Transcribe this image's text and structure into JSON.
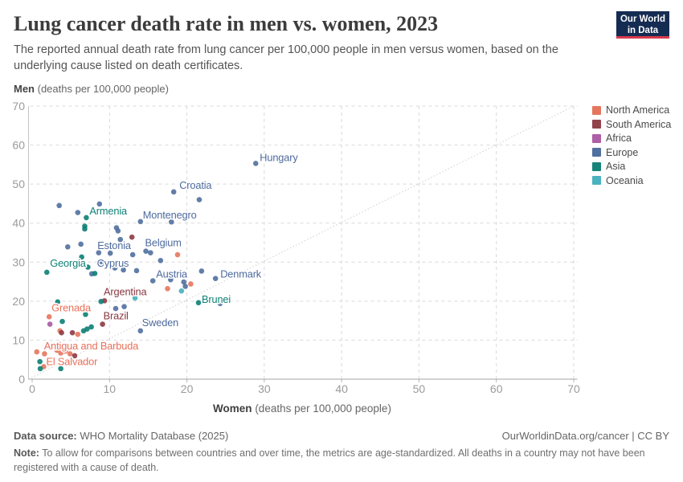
{
  "header": {
    "title": "Lung cancer death rate in men vs. women, 2023",
    "subtitle": "The reported annual death rate from lung cancer per 100,000 people in men versus women, based on the underlying cause listed on death certificates.",
    "logo_line1": "Our World",
    "logo_line2": "in Data"
  },
  "y_axis_title": {
    "bold": "Men",
    "rest": " (deaths per 100,000 people)"
  },
  "x_axis_title": {
    "bold": "Women",
    "rest": " (deaths per 100,000 people)"
  },
  "legend": {
    "items": [
      {
        "label": "North America",
        "color": "#e5765e"
      },
      {
        "label": "South America",
        "color": "#91434c"
      },
      {
        "label": "Africa",
        "color": "#ae5fa7"
      },
      {
        "label": "Europe",
        "color": "#50709f"
      },
      {
        "label": "Asia",
        "color": "#17847a"
      },
      {
        "label": "Oceania",
        "color": "#4bb2bf"
      }
    ]
  },
  "chart_data": {
    "type": "scatter",
    "title": "Lung cancer death rate in men vs. women, 2023",
    "xlabel": "Women (deaths per 100,000 people)",
    "ylabel": "Men (deaths per 100,000 people)",
    "xlim": [
      0,
      70
    ],
    "ylim": [
      0,
      70
    ],
    "x_ticks": [
      0,
      10,
      20,
      30,
      40,
      50,
      60,
      70
    ],
    "y_ticks": [
      0,
      10,
      20,
      30,
      40,
      50,
      60,
      70
    ],
    "grid": true,
    "diagonal_reference_line": true,
    "legend_position": "right",
    "series": [
      {
        "name": "North America",
        "color": "#e5765e",
        "text_color": "#e86f59",
        "points": [
          [
            2.2,
            16,
            "Grenada",
            3,
            -7
          ],
          [
            0.6,
            7,
            "Antigua and Barbuda",
            9,
            -3
          ],
          [
            1.5,
            3.2,
            "El Salvador",
            3,
            -2
          ],
          [
            18.8,
            31.9
          ],
          [
            20.5,
            24.4
          ],
          [
            17.5,
            23.2
          ],
          [
            3.6,
            12.4
          ],
          [
            5.9,
            11.5
          ],
          [
            1.6,
            6.5
          ],
          [
            3.2,
            7.4
          ],
          [
            3.7,
            6.7
          ],
          [
            4.3,
            7.2
          ],
          [
            4.9,
            6.5
          ],
          [
            2.1,
            3.9
          ]
        ]
      },
      {
        "name": "South America",
        "color": "#8d3a42",
        "text_color": "#873740",
        "points": [
          [
            9.35,
            20.1,
            "Argentina",
            -1,
            -7
          ],
          [
            9.1,
            14.1,
            "Brazil",
            1,
            -6
          ],
          [
            12.9,
            36.4
          ],
          [
            3.8,
            11.9
          ],
          [
            5.2,
            11.9
          ],
          [
            5.5,
            6
          ]
        ]
      },
      {
        "name": "Africa",
        "color": "#aa58a2",
        "points": [
          [
            2.3,
            14.1
          ]
        ]
      },
      {
        "name": "Europe",
        "color": "#50709f",
        "text_color": "#4d6a9d",
        "points": [
          [
            28.9,
            55.3,
            "Hungary",
            5,
            -3
          ],
          [
            18.3,
            48,
            "Croatia",
            7,
            -4
          ],
          [
            14,
            40.4,
            "Montenegro",
            3,
            -4
          ],
          [
            10.1,
            32.3,
            "Estonia",
            -16,
            -5
          ],
          [
            14.7,
            32.8,
            "Belgium",
            -1,
            -6
          ],
          [
            9,
            30.1,
            "Cyprus",
            -6,
            6
          ],
          [
            15.6,
            25.2,
            "Austria",
            4,
            -4
          ],
          [
            23.7,
            25.8,
            "Denmark",
            6,
            -1
          ],
          [
            14,
            12.4,
            "Sweden",
            2,
            -6
          ],
          [
            21.6,
            46
          ],
          [
            3.5,
            44.5
          ],
          [
            8.7,
            44.9
          ],
          [
            5.9,
            42.7
          ],
          [
            18,
            40.3
          ],
          [
            10.9,
            38.8
          ],
          [
            11.1,
            38
          ],
          [
            11.4,
            35.8
          ],
          [
            4.6,
            33.9
          ],
          [
            6.3,
            34.6
          ],
          [
            13,
            31.9
          ],
          [
            8.6,
            32.4
          ],
          [
            15.3,
            32.4
          ],
          [
            16.6,
            30.4
          ],
          [
            10.7,
            28.5
          ],
          [
            11.8,
            28
          ],
          [
            13.5,
            27.8
          ],
          [
            7.7,
            27
          ],
          [
            21.9,
            27.7
          ],
          [
            17.9,
            25.5
          ],
          [
            19.6,
            24.9
          ],
          [
            19.8,
            23.8
          ],
          [
            24.3,
            19.4
          ],
          [
            10.8,
            18.1
          ],
          [
            11.9,
            18.6
          ]
        ]
      },
      {
        "name": "Asia",
        "color": "#0b8076",
        "text_color": "#0e8177",
        "points": [
          [
            7,
            41.4,
            "Armenia",
            4,
            -4
          ],
          [
            1.9,
            27.4,
            "Georgia",
            4,
            -7
          ],
          [
            21.5,
            19.6,
            "Brunei",
            4,
            0
          ],
          [
            6.8,
            39.2
          ],
          [
            6.8,
            38.5
          ],
          [
            6.4,
            31.3
          ],
          [
            7.2,
            28.7
          ],
          [
            8.1,
            27.1
          ],
          [
            8.9,
            19.9
          ],
          [
            3.3,
            19.8
          ],
          [
            6.9,
            16.6
          ],
          [
            3.9,
            14.8
          ],
          [
            6.65,
            12.4
          ],
          [
            7.1,
            12.85
          ],
          [
            7.65,
            13.4
          ],
          [
            1,
            4.5
          ],
          [
            1.05,
            2.7
          ],
          [
            3.7,
            2.7
          ]
        ]
      },
      {
        "name": "Oceania",
        "color": "#46b1be",
        "points": [
          [
            13.3,
            20.8
          ],
          [
            19.3,
            22.6
          ]
        ]
      }
    ]
  },
  "footer": {
    "source_bold": "Data source:",
    "source_rest": " WHO Mortality Database (2025)",
    "link": "OurWorldinData.org/cancer | CC BY",
    "note_bold": "Note:",
    "note_rest": " To allow for comparisons between countries and over time, the metrics are age-standardized. All deaths in a country may not have been registered with a cause of death."
  }
}
